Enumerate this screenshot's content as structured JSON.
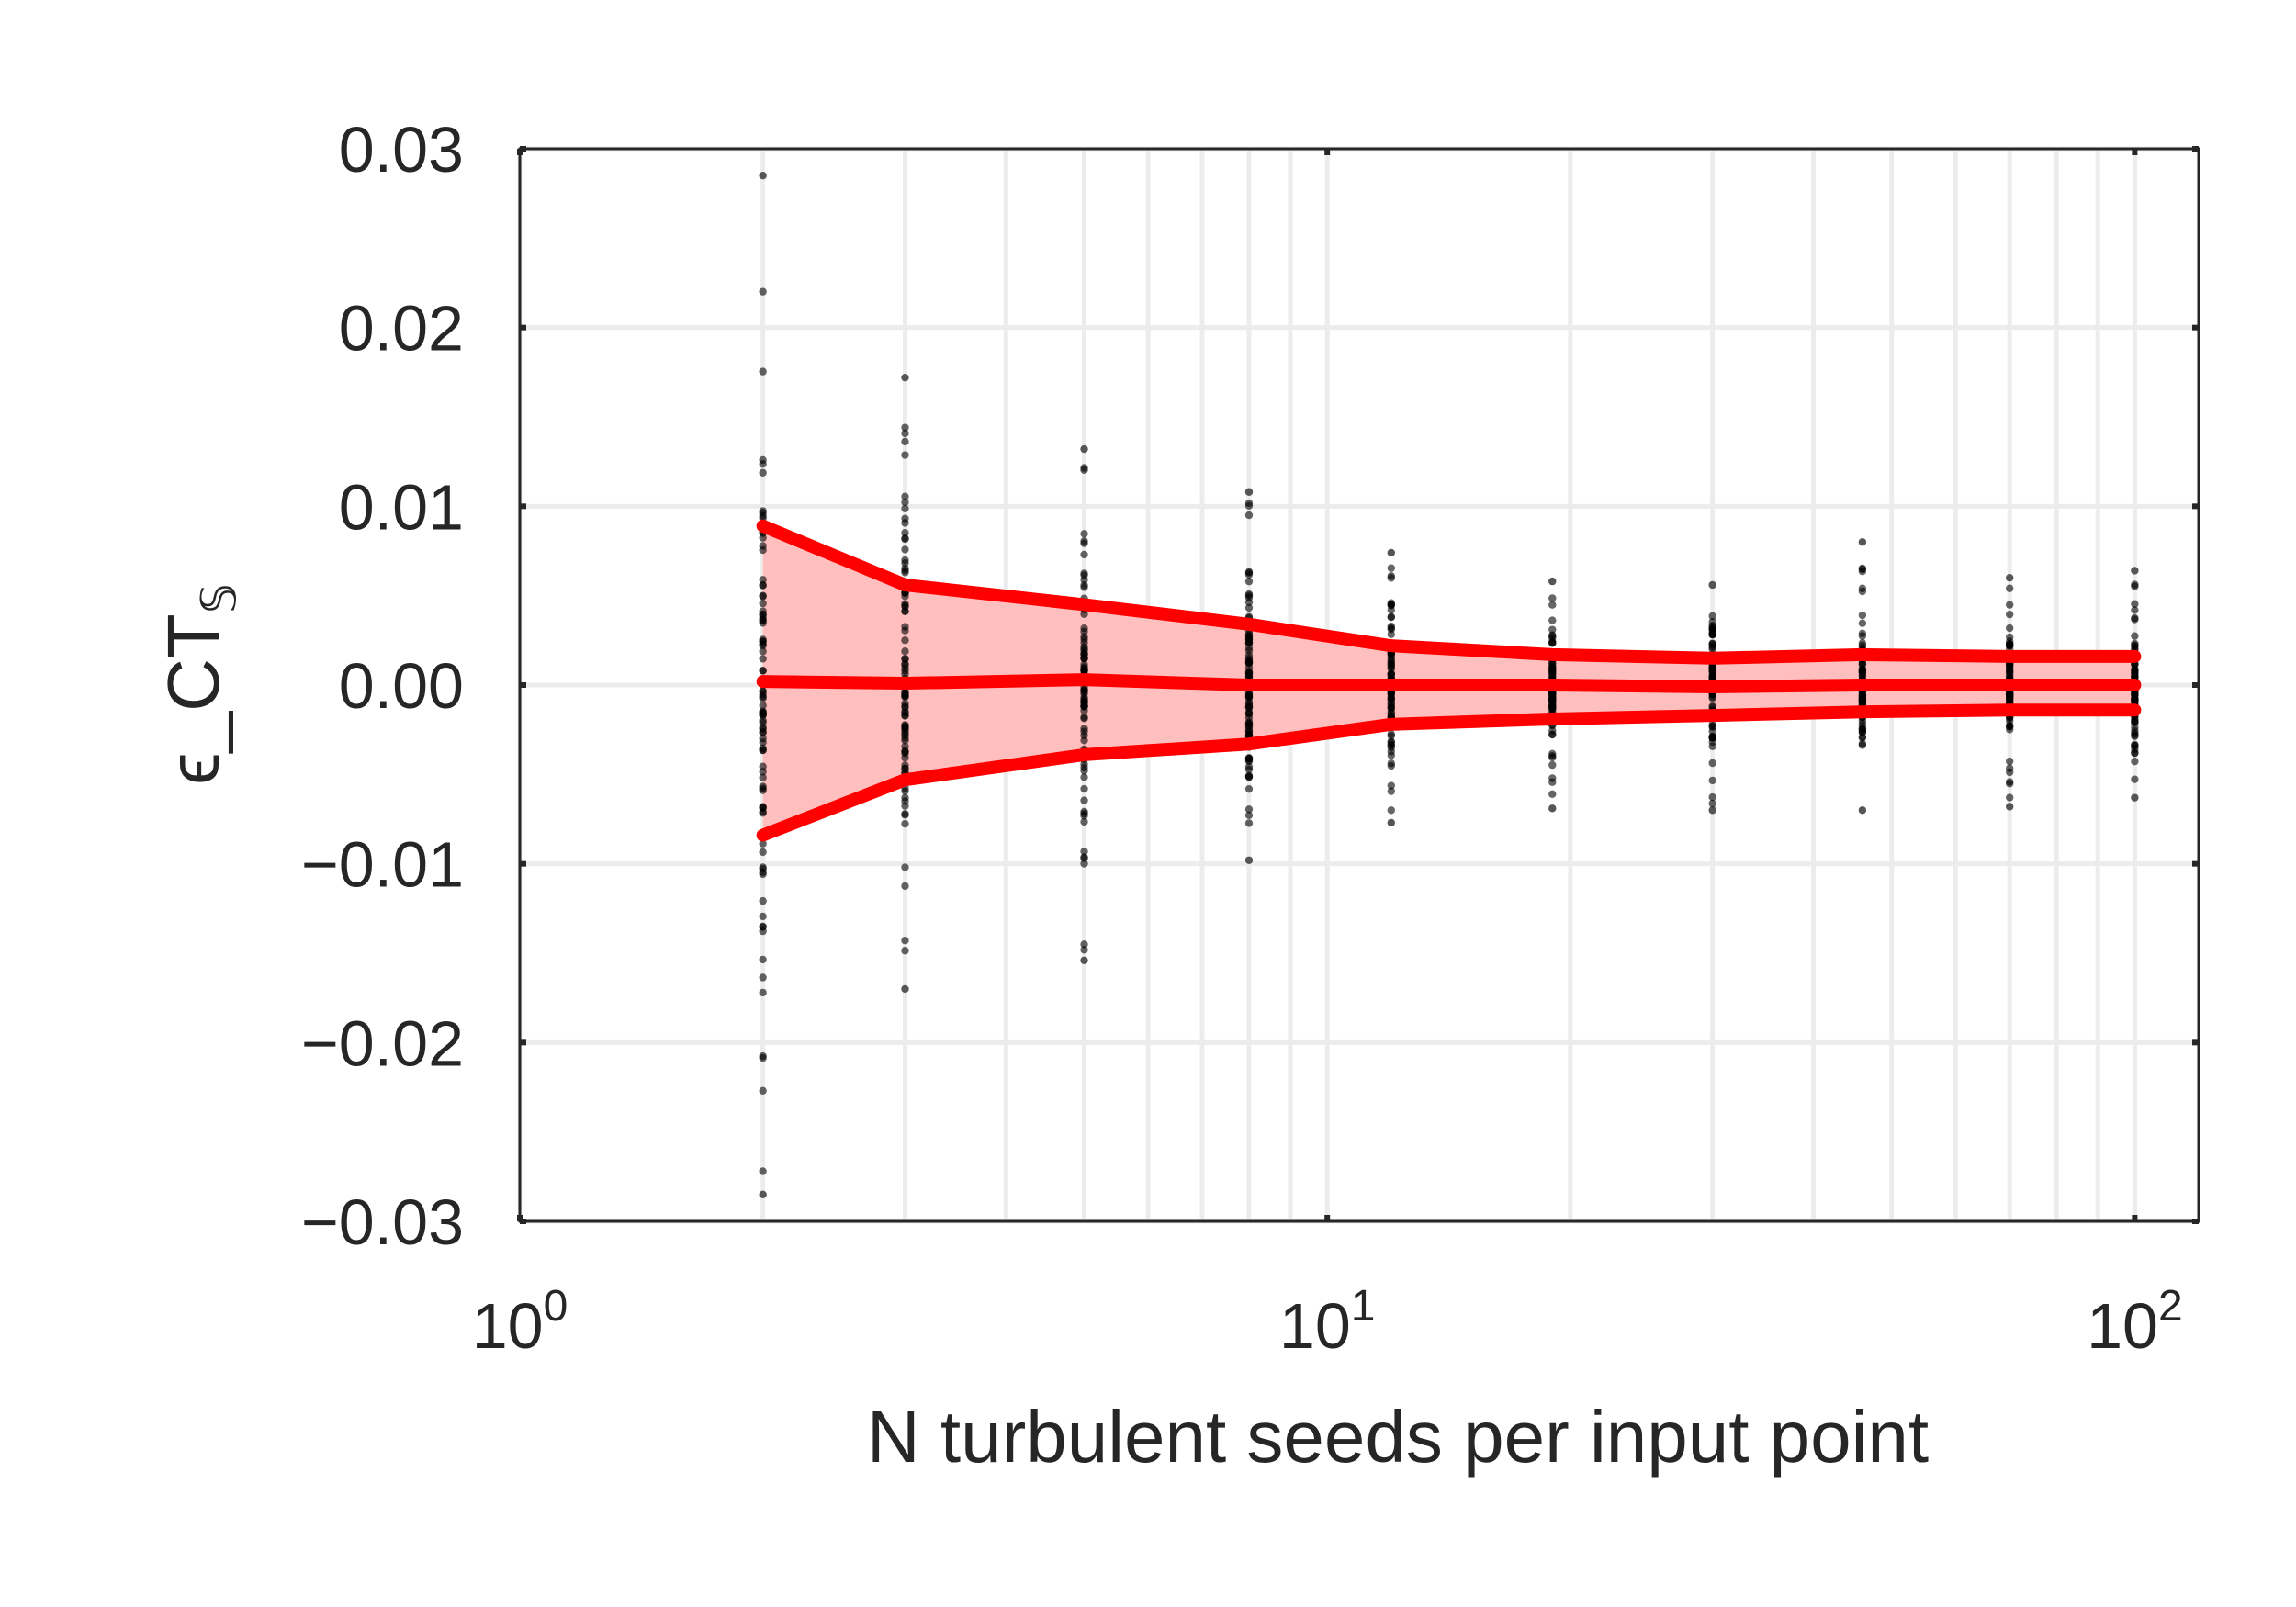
{
  "chart_data": {
    "type": "line",
    "xlabel": "N turbulent seeds per input point",
    "ylabel": "ϵ_CT",
    "ylabel_subscript": "𝕊",
    "x_scale": "log",
    "xlim": [
      1,
      120
    ],
    "ylim": [
      -0.03,
      0.03
    ],
    "grid": true,
    "x_ticks": [
      {
        "value": 1,
        "base": "10",
        "exp": "0"
      },
      {
        "value": 10,
        "base": "10",
        "exp": "1"
      },
      {
        "value": 100,
        "base": "10",
        "exp": "2"
      }
    ],
    "y_ticks": [
      {
        "value": 0.03,
        "label": "0.03"
      },
      {
        "value": 0.02,
        "label": "0.02"
      },
      {
        "value": 0.01,
        "label": "0.01"
      },
      {
        "value": 0.0,
        "label": "0.00"
      },
      {
        "value": -0.01,
        "label": "−0.01"
      },
      {
        "value": -0.02,
        "label": "−0.02"
      },
      {
        "value": -0.03,
        "label": "−0.03"
      }
    ],
    "x": [
      2,
      3,
      5,
      8,
      12,
      19,
      30,
      46,
      70,
      100
    ],
    "series": [
      {
        "role": "upper",
        "values": [
          0.0089,
          0.0056,
          0.0045,
          0.0034,
          0.0022,
          0.0017,
          0.0015,
          0.0017,
          0.0016,
          0.0016
        ]
      },
      {
        "role": "median",
        "values": [
          0.0002,
          0.0001,
          0.0003,
          0.0,
          0.0,
          0.0,
          -0.0001,
          0.0,
          0.0,
          0.0
        ]
      },
      {
        "role": "lower",
        "values": [
          -0.0084,
          -0.0053,
          -0.0039,
          -0.0033,
          -0.0022,
          -0.0019,
          -0.0017,
          -0.0015,
          -0.0014,
          -0.0014
        ]
      }
    ],
    "scatter_spread": [
      {
        "x": 2,
        "min": -0.0285,
        "max": 0.0285
      },
      {
        "x": 3,
        "min": -0.017,
        "max": 0.0172
      },
      {
        "x": 5,
        "min": -0.0154,
        "max": 0.0132
      },
      {
        "x": 8,
        "min": -0.0098,
        "max": 0.0108
      },
      {
        "x": 12,
        "min": -0.0077,
        "max": 0.0074
      },
      {
        "x": 19,
        "min": -0.0069,
        "max": 0.0058
      },
      {
        "x": 30,
        "min": -0.007,
        "max": 0.0056
      },
      {
        "x": 46,
        "min": -0.007,
        "max": 0.008
      },
      {
        "x": 70,
        "min": -0.0068,
        "max": 0.006
      },
      {
        "x": 100,
        "min": -0.0063,
        "max": 0.0064
      }
    ],
    "colors": {
      "line": "#ff0000",
      "band": "#ffbfbf",
      "points": "#000000",
      "grid": "#ececec",
      "axis": "#262626"
    }
  }
}
